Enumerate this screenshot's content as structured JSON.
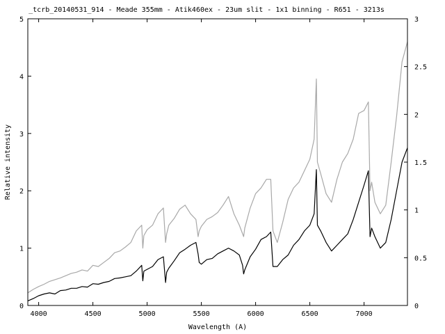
{
  "chart_data": {
    "type": "line",
    "title": "_tcrb_20140531_914  - Meade 355mm - Atik460ex - 23um slit - 1x1 binning - R651 - 3213s",
    "xlabel": "Wavelength (A)",
    "ylabel": "Relative intensity",
    "xlim": [
      3900,
      7400
    ],
    "ylim_left": [
      0,
      5
    ],
    "ylim_right": [
      0,
      3
    ],
    "x_ticks": [
      4000,
      4500,
      5000,
      5500,
      6000,
      6500,
      7000
    ],
    "y_ticks_left": [
      0,
      1,
      2,
      3,
      4,
      5
    ],
    "y_ticks_right": [
      0,
      0.5,
      1,
      1.5,
      2,
      2.5,
      3
    ],
    "y_tick_labels_right": [
      "0",
      "0.5",
      "1",
      "1.5",
      "2",
      "2.5",
      "3"
    ],
    "grid": false,
    "series": [
      {
        "axis": "left",
        "color": "#000000",
        "x": [
          3900,
          3950,
          4000,
          4050,
          4100,
          4150,
          4200,
          4250,
          4300,
          4350,
          4400,
          4450,
          4500,
          4550,
          4600,
          4650,
          4700,
          4750,
          4800,
          4850,
          4900,
          4950,
          4960,
          4970,
          5000,
          5050,
          5100,
          5150,
          5170,
          5180,
          5200,
          5250,
          5300,
          5350,
          5400,
          5450,
          5470,
          5480,
          5500,
          5550,
          5600,
          5650,
          5700,
          5750,
          5800,
          5850,
          5880,
          5890,
          5900,
          5950,
          6000,
          6050,
          6100,
          6140,
          6160,
          6200,
          6250,
          6300,
          6350,
          6400,
          6450,
          6500,
          6540,
          6560,
          6570,
          6600,
          6650,
          6700,
          6750,
          6800,
          6850,
          6900,
          6950,
          7000,
          7040,
          7055,
          7070,
          7100,
          7150,
          7200,
          7250,
          7300,
          7350,
          7400
        ],
        "y": [
          0.08,
          0.12,
          0.17,
          0.2,
          0.22,
          0.2,
          0.26,
          0.27,
          0.3,
          0.3,
          0.33,
          0.32,
          0.38,
          0.37,
          0.4,
          0.42,
          0.47,
          0.48,
          0.5,
          0.52,
          0.6,
          0.7,
          0.43,
          0.6,
          0.63,
          0.68,
          0.8,
          0.85,
          0.4,
          0.58,
          0.65,
          0.78,
          0.92,
          0.98,
          1.05,
          1.1,
          0.9,
          0.75,
          0.72,
          0.8,
          0.82,
          0.9,
          0.95,
          1.0,
          0.95,
          0.88,
          0.7,
          0.55,
          0.62,
          0.85,
          0.98,
          1.15,
          1.2,
          1.28,
          0.68,
          0.68,
          0.8,
          0.88,
          1.05,
          1.15,
          1.3,
          1.4,
          1.6,
          2.37,
          1.4,
          1.3,
          1.1,
          0.95,
          1.05,
          1.15,
          1.25,
          1.5,
          1.8,
          2.1,
          2.35,
          1.2,
          1.35,
          1.2,
          1.0,
          1.1,
          1.5,
          2.0,
          2.5,
          2.75
        ]
      },
      {
        "axis": "left",
        "color": "#a8a8a8",
        "x": [
          3900,
          3950,
          4000,
          4050,
          4100,
          4150,
          4200,
          4250,
          4300,
          4350,
          4400,
          4450,
          4500,
          4550,
          4600,
          4650,
          4700,
          4750,
          4800,
          4850,
          4900,
          4950,
          4960,
          4970,
          5000,
          5050,
          5100,
          5150,
          5170,
          5180,
          5200,
          5250,
          5300,
          5350,
          5400,
          5450,
          5470,
          5480,
          5500,
          5550,
          5600,
          5650,
          5700,
          5750,
          5800,
          5850,
          5880,
          5890,
          5900,
          5950,
          6000,
          6050,
          6100,
          6140,
          6160,
          6200,
          6250,
          6300,
          6350,
          6400,
          6450,
          6500,
          6540,
          6560,
          6570,
          6600,
          6650,
          6700,
          6750,
          6800,
          6850,
          6900,
          6950,
          7000,
          7040,
          7055,
          7070,
          7100,
          7150,
          7200,
          7250,
          7300,
          7350,
          7400
        ],
        "y": [
          0.22,
          0.28,
          0.33,
          0.37,
          0.42,
          0.45,
          0.48,
          0.52,
          0.56,
          0.58,
          0.62,
          0.6,
          0.7,
          0.68,
          0.75,
          0.82,
          0.92,
          0.95,
          1.02,
          1.1,
          1.3,
          1.4,
          1.0,
          1.22,
          1.32,
          1.4,
          1.6,
          1.7,
          1.1,
          1.25,
          1.4,
          1.52,
          1.68,
          1.75,
          1.6,
          1.5,
          1.2,
          1.3,
          1.38,
          1.5,
          1.55,
          1.62,
          1.75,
          1.9,
          1.6,
          1.4,
          1.25,
          1.2,
          1.35,
          1.7,
          1.95,
          2.05,
          2.2,
          2.2,
          1.3,
          1.1,
          1.45,
          1.85,
          2.05,
          2.15,
          2.35,
          2.55,
          2.9,
          3.95,
          2.5,
          2.3,
          1.95,
          1.8,
          2.2,
          2.5,
          2.65,
          2.9,
          3.35,
          3.4,
          3.55,
          2.0,
          2.15,
          1.8,
          1.6,
          1.75,
          2.5,
          3.3,
          4.25,
          4.6
        ]
      }
    ]
  }
}
